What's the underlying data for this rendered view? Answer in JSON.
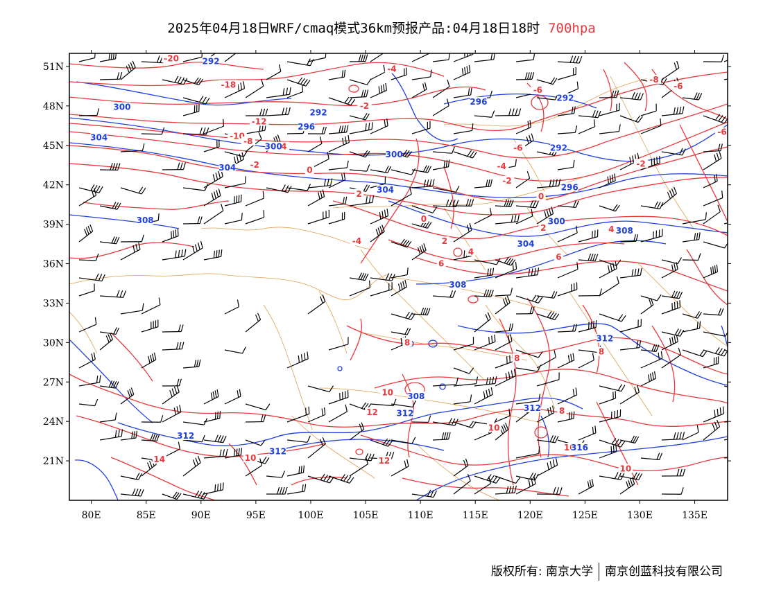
{
  "title": {
    "main": "2025年04月18日WRF/cmaq模式36km预报产品:04月18日18时",
    "level": "700hpa"
  },
  "colors": {
    "temperature_contour": "#e8383b",
    "geopotential_contour": "#1f3fe0",
    "boundary": "#e0a050",
    "wind_barb": "#000000",
    "frame": "#000000"
  },
  "axes": {
    "lon_labels": [
      "80E",
      "85E",
      "90E",
      "95E",
      "100E",
      "105E",
      "110E",
      "115E",
      "120E",
      "125E",
      "130E",
      "135E"
    ],
    "lat_labels": [
      "51N",
      "48N",
      "45N",
      "42N",
      "39N",
      "36N",
      "33N",
      "30N",
      "27N",
      "24N",
      "21N"
    ],
    "lon_values": [
      80,
      85,
      90,
      95,
      100,
      105,
      110,
      115,
      120,
      125,
      130,
      135
    ],
    "lat_values": [
      51,
      48,
      45,
      42,
      39,
      36,
      33,
      30,
      27,
      24,
      21
    ],
    "lon_range": [
      78,
      138
    ],
    "lat_range": [
      18,
      52
    ]
  },
  "temperature_labels": [
    {
      "text": "-20",
      "lon": 87.3,
      "lat": 51.5
    },
    {
      "text": "-18",
      "lon": 92.5,
      "lat": 49.5
    },
    {
      "text": "-12",
      "lon": 95.3,
      "lat": 46.7
    },
    {
      "text": "-10",
      "lon": 93.3,
      "lat": 45.6
    },
    {
      "text": "-8",
      "lon": 94.3,
      "lat": 45.2
    },
    {
      "text": "-2",
      "lon": 94.9,
      "lat": 43.4
    },
    {
      "text": "-4",
      "lon": 97.4,
      "lat": 44.8
    },
    {
      "text": "0",
      "lon": 99.9,
      "lat": 43.0
    },
    {
      "text": "2",
      "lon": 104.4,
      "lat": 41.2
    },
    {
      "text": "-2",
      "lon": 104.9,
      "lat": 47.9
    },
    {
      "text": "-4",
      "lon": 107.4,
      "lat": 50.7
    },
    {
      "text": "-6",
      "lon": 120.7,
      "lat": 49.1
    },
    {
      "text": "-6",
      "lon": 118.9,
      "lat": 44.7
    },
    {
      "text": "-4",
      "lon": 117.4,
      "lat": 43.3
    },
    {
      "text": "-2",
      "lon": 117.9,
      "lat": 42.2
    },
    {
      "text": "0",
      "lon": 121.0,
      "lat": 41.0
    },
    {
      "text": "2",
      "lon": 121.2,
      "lat": 38.6
    },
    {
      "text": "0",
      "lon": 110.3,
      "lat": 39.3
    },
    {
      "text": "-4",
      "lon": 104.2,
      "lat": 37.6
    },
    {
      "text": "2",
      "lon": 112.2,
      "lat": 37.6
    },
    {
      "text": "4",
      "lon": 114.6,
      "lat": 36.8
    },
    {
      "text": "6",
      "lon": 111.9,
      "lat": 35.9
    },
    {
      "text": "6",
      "lon": 122.6,
      "lat": 36.4
    },
    {
      "text": "4",
      "lon": 127.4,
      "lat": 38.5
    },
    {
      "text": "-8",
      "lon": 131.3,
      "lat": 49.9
    },
    {
      "text": "-6",
      "lon": 133.5,
      "lat": 49.4
    },
    {
      "text": "-6",
      "lon": 137.5,
      "lat": 45.9
    },
    {
      "text": "-2",
      "lon": 130.1,
      "lat": 43.5
    },
    {
      "text": "8",
      "lon": 108.8,
      "lat": 29.9
    },
    {
      "text": "8",
      "lon": 118.8,
      "lat": 28.7
    },
    {
      "text": "8",
      "lon": 126.5,
      "lat": 29.2
    },
    {
      "text": "8",
      "lon": 122.9,
      "lat": 24.7
    },
    {
      "text": "10",
      "lon": 107.0,
      "lat": 26.1
    },
    {
      "text": "10",
      "lon": 116.7,
      "lat": 23.4
    },
    {
      "text": "10",
      "lon": 123.6,
      "lat": 21.9
    },
    {
      "text": "10",
      "lon": 128.7,
      "lat": 20.3
    },
    {
      "text": "10",
      "lon": 94.5,
      "lat": 21.1
    },
    {
      "text": "12",
      "lon": 105.6,
      "lat": 24.6
    },
    {
      "text": "12",
      "lon": 106.7,
      "lat": 20.9
    },
    {
      "text": "14",
      "lon": 86.2,
      "lat": 21.0
    }
  ],
  "height_labels": [
    {
      "text": "292",
      "lon": 90.9,
      "lat": 51.3
    },
    {
      "text": "300",
      "lon": 82.8,
      "lat": 47.8
    },
    {
      "text": "292",
      "lon": 100.7,
      "lat": 47.4
    },
    {
      "text": "296",
      "lon": 99.6,
      "lat": 46.3
    },
    {
      "text": "304",
      "lon": 80.7,
      "lat": 45.5
    },
    {
      "text": "300",
      "lon": 96.6,
      "lat": 44.8
    },
    {
      "text": "300",
      "lon": 107.6,
      "lat": 44.2
    },
    {
      "text": "304",
      "lon": 92.4,
      "lat": 43.2
    },
    {
      "text": "304",
      "lon": 106.8,
      "lat": 41.5
    },
    {
      "text": "296",
      "lon": 115.3,
      "lat": 48.2
    },
    {
      "text": "292",
      "lon": 123.2,
      "lat": 48.5
    },
    {
      "text": "292",
      "lon": 122.6,
      "lat": 44.7
    },
    {
      "text": "296",
      "lon": 123.6,
      "lat": 41.7
    },
    {
      "text": "300",
      "lon": 122.4,
      "lat": 39.1
    },
    {
      "text": "304",
      "lon": 119.6,
      "lat": 37.4
    },
    {
      "text": "308",
      "lon": 128.6,
      "lat": 38.4
    },
    {
      "text": "308",
      "lon": 84.9,
      "lat": 39.2
    },
    {
      "text": "308",
      "lon": 113.4,
      "lat": 34.3
    },
    {
      "text": "308",
      "lon": 109.6,
      "lat": 25.8
    },
    {
      "text": "312",
      "lon": 126.8,
      "lat": 30.2
    },
    {
      "text": "312",
      "lon": 108.6,
      "lat": 24.5
    },
    {
      "text": "312",
      "lon": 120.2,
      "lat": 24.9
    },
    {
      "text": "312",
      "lon": 88.6,
      "lat": 22.8
    },
    {
      "text": "312",
      "lon": 97.0,
      "lat": 21.6
    },
    {
      "text": "316",
      "lon": 124.5,
      "lat": 21.9
    }
  ],
  "copyright": {
    "left": "版权所有: 南京大学",
    "right": "南京创蓝科技有限公司"
  }
}
